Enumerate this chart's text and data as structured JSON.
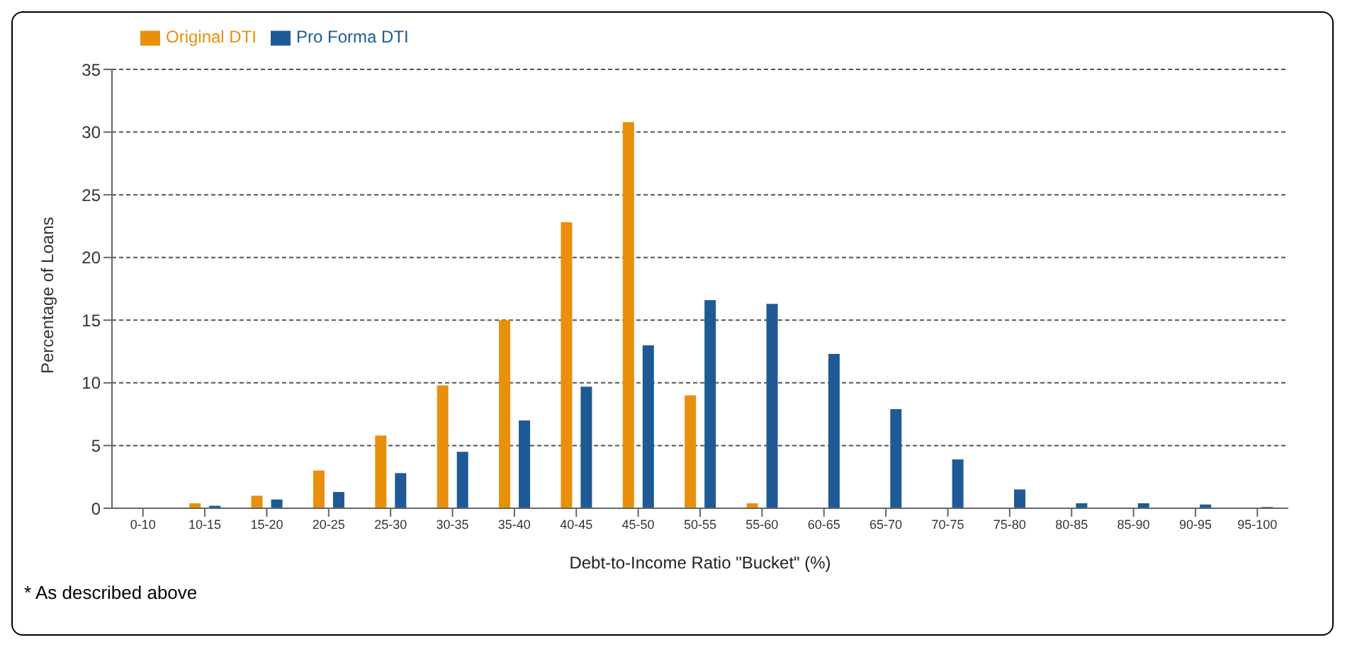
{
  "chart_data": {
    "type": "bar",
    "xlabel": "Debt-to-Income Ratio \"Bucket\" (%)",
    "ylabel": "Percentage of Loans",
    "categories": [
      "0-10",
      "10-15",
      "15-20",
      "20-25",
      "25-30",
      "30-35",
      "35-40",
      "40-45",
      "45-50",
      "50-55",
      "55-60",
      "60-65",
      "65-70",
      "70-75",
      "75-80",
      "80-85",
      "85-90",
      "90-95",
      "95-100"
    ],
    "series": [
      {
        "name": "Original DTI",
        "color": "#e8900c",
        "values": [
          0,
          0.4,
          1,
          3,
          5.8,
          9.8,
          15,
          22.8,
          30.8,
          9,
          0.4,
          0,
          0,
          0,
          0,
          0,
          0,
          0,
          0
        ]
      },
      {
        "name": "Pro Forma DTI",
        "color": "#1f5a96",
        "values": [
          0,
          0.2,
          0.7,
          1.3,
          2.8,
          4.5,
          7,
          9.7,
          13,
          16.6,
          16.3,
          12.3,
          7.9,
          3.9,
          1.5,
          0.4,
          0.4,
          0.3,
          0.1
        ]
      }
    ],
    "ylim": [
      0,
      35
    ],
    "yticks": [
      0,
      5,
      10,
      15,
      20,
      25,
      30,
      35
    ],
    "grid": "y",
    "legend": "top left",
    "annotations": [
      "* As described above"
    ]
  }
}
